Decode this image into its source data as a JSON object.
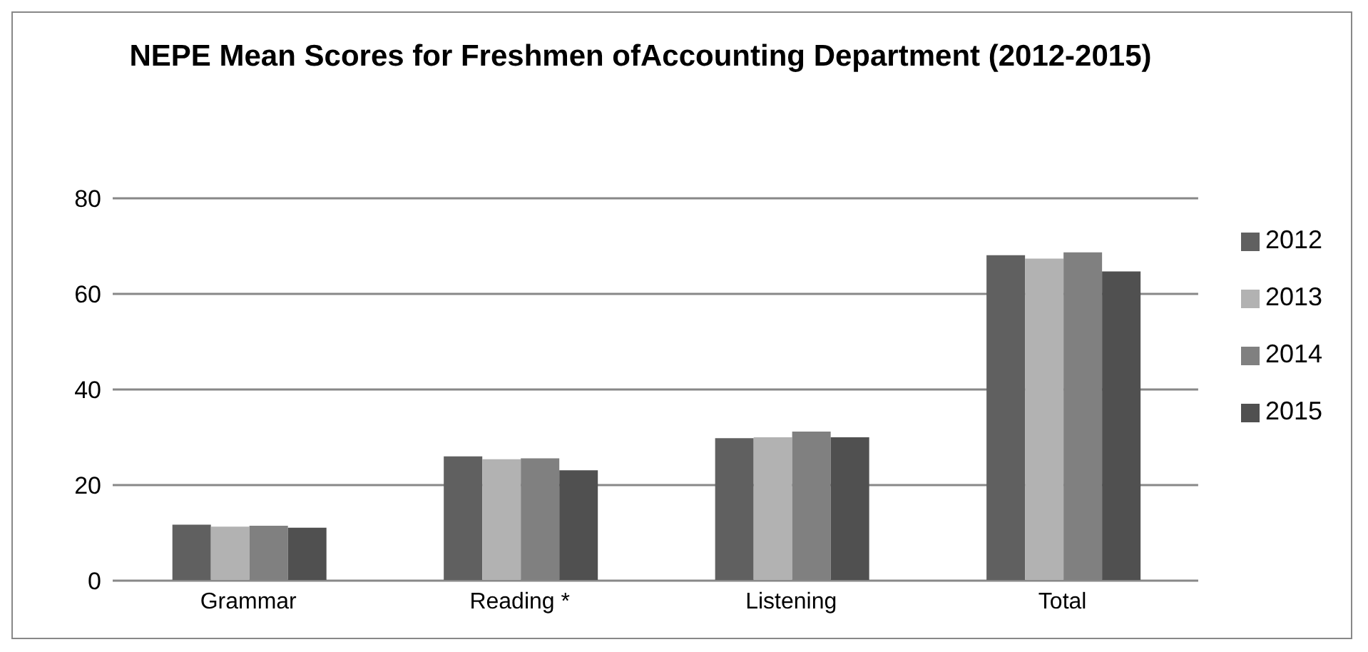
{
  "chart_data": {
    "type": "bar",
    "title": "NEPE Mean Scores for Freshmen ofAccounting Department (2012-2015)",
    "categories": [
      "Grammar",
      "Reading *",
      "Listening",
      "Total"
    ],
    "series": [
      {
        "name": "2012",
        "color": "#606060",
        "values": [
          11.7,
          26.0,
          29.8,
          68.1
        ]
      },
      {
        "name": "2013",
        "color": "#b2b2b2",
        "values": [
          11.3,
          25.4,
          30.0,
          67.4
        ]
      },
      {
        "name": "2014",
        "color": "#808080",
        "values": [
          11.5,
          25.6,
          31.2,
          68.7
        ]
      },
      {
        "name": "2015",
        "color": "#505050",
        "values": [
          11.1,
          23.1,
          30.0,
          64.7
        ]
      }
    ],
    "ylim": [
      0,
      80
    ],
    "yticks": [
      0,
      20,
      40,
      60,
      80
    ],
    "grid": "y",
    "legend": "right"
  }
}
